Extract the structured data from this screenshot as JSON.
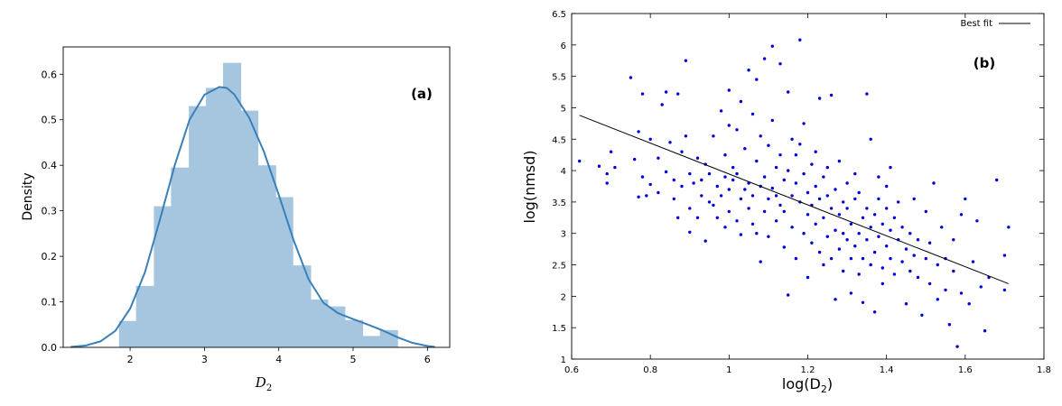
{
  "chart_data": [
    {
      "type": "bar",
      "subtype": "histogram-with-kde",
      "annotation": "(a)",
      "xlabel": "D",
      "xlabel_sub": "2",
      "ylabel": "Density",
      "xlim": [
        1.1,
        6.3
      ],
      "ylim": [
        0,
        0.66
      ],
      "xticks": [
        "2",
        "3",
        "4",
        "5",
        "6"
      ],
      "yticks": [
        "0.0",
        "0.1",
        "0.2",
        "0.3",
        "0.4",
        "0.5",
        "0.6"
      ],
      "bin_edges": [
        1.85,
        2.08,
        2.32,
        2.55,
        2.79,
        3.02,
        3.25,
        3.49,
        3.72,
        3.96,
        4.19,
        4.43,
        4.66,
        4.89,
        5.13,
        5.36,
        5.6
      ],
      "bin_heights": [
        0.058,
        0.135,
        0.31,
        0.395,
        0.53,
        0.57,
        0.625,
        0.52,
        0.4,
        0.33,
        0.18,
        0.105,
        0.09,
        0.06,
        0.025,
        0.038
      ],
      "kde_x": [
        1.2,
        1.4,
        1.6,
        1.8,
        2.0,
        2.2,
        2.4,
        2.6,
        2.8,
        3.0,
        3.2,
        3.3,
        3.4,
        3.6,
        3.8,
        4.0,
        4.2,
        4.4,
        4.6,
        4.8,
        5.0,
        5.2,
        5.4,
        5.6,
        5.8,
        6.0,
        6.1
      ],
      "kde_y": [
        0.001,
        0.004,
        0.013,
        0.036,
        0.085,
        0.165,
        0.28,
        0.4,
        0.5,
        0.555,
        0.572,
        0.57,
        0.556,
        0.505,
        0.43,
        0.335,
        0.235,
        0.15,
        0.098,
        0.075,
        0.062,
        0.05,
        0.037,
        0.022,
        0.01,
        0.003,
        0.001
      ],
      "bar_color": "#a6c6df",
      "line_color": "#3b80b8"
    },
    {
      "type": "scatter",
      "annotation": "(b)",
      "xlabel": "log(D",
      "xlabel_sub": "2",
      "xlabel_end": ")",
      "ylabel": "log(nmsd)",
      "xlim": [
        0.6,
        1.8
      ],
      "ylim": [
        1,
        6.5
      ],
      "xticks": [
        "0.6",
        "0.8",
        "1",
        "1.2",
        "1.4",
        "1.6",
        "1.8"
      ],
      "yticks": [
        "1",
        "1.5",
        "2",
        "2.5",
        "3",
        "3.5",
        "4",
        "4.5",
        "5",
        "5.5",
        "6",
        "6.5"
      ],
      "legend": {
        "label": "Best fit",
        "position": "top-right"
      },
      "fit_line": {
        "x": [
          0.62,
          1.71
        ],
        "y": [
          4.88,
          2.2
        ]
      },
      "point_color": "#0000dd",
      "fit_color": "#000000",
      "points": [
        [
          0.62,
          4.15
        ],
        [
          0.67,
          4.07
        ],
        [
          0.69,
          3.95
        ],
        [
          0.7,
          4.3
        ],
        [
          0.71,
          4.05
        ],
        [
          0.69,
          3.8
        ],
        [
          0.75,
          5.48
        ],
        [
          0.76,
          4.18
        ],
        [
          0.77,
          3.58
        ],
        [
          0.77,
          4.62
        ],
        [
          0.78,
          3.9
        ],
        [
          0.78,
          5.22
        ],
        [
          0.79,
          3.6
        ],
        [
          0.8,
          3.78
        ],
        [
          0.8,
          4.5
        ],
        [
          0.82,
          3.65
        ],
        [
          0.82,
          4.2
        ],
        [
          0.83,
          5.05
        ],
        [
          0.84,
          5.25
        ],
        [
          0.84,
          3.98
        ],
        [
          0.85,
          4.45
        ],
        [
          0.86,
          3.85
        ],
        [
          0.86,
          3.55
        ],
        [
          0.87,
          5.22
        ],
        [
          0.87,
          3.25
        ],
        [
          0.88,
          4.3
        ],
        [
          0.88,
          3.75
        ],
        [
          0.89,
          5.75
        ],
        [
          0.89,
          4.55
        ],
        [
          0.9,
          3.95
        ],
        [
          0.9,
          3.4
        ],
        [
          0.9,
          3.02
        ],
        [
          0.91,
          3.8
        ],
        [
          0.92,
          4.2
        ],
        [
          0.92,
          3.25
        ],
        [
          0.93,
          3.6
        ],
        [
          0.93,
          3.85
        ],
        [
          0.94,
          4.1
        ],
        [
          0.94,
          2.88
        ],
        [
          0.95,
          3.5
        ],
        [
          0.95,
          3.95
        ],
        [
          0.96,
          4.55
        ],
        [
          0.96,
          3.45
        ],
        [
          0.97,
          3.75
        ],
        [
          0.97,
          3.25
        ],
        [
          0.98,
          4.95
        ],
        [
          0.98,
          3.6
        ],
        [
          0.99,
          3.9
        ],
        [
          0.99,
          4.25
        ],
        [
          0.99,
          3.1
        ],
        [
          1.0,
          5.28
        ],
        [
          1.0,
          3.7
        ],
        [
          1.0,
          4.72
        ],
        [
          1.0,
          3.35
        ],
        [
          1.01,
          3.85
        ],
        [
          1.01,
          4.05
        ],
        [
          1.02,
          4.65
        ],
        [
          1.02,
          3.2
        ],
        [
          1.02,
          3.95
        ],
        [
          1.03,
          5.1
        ],
        [
          1.03,
          3.55
        ],
        [
          1.03,
          2.98
        ],
        [
          1.04,
          3.7
        ],
        [
          1.04,
          4.35
        ],
        [
          1.05,
          5.6
        ],
        [
          1.05,
          3.8
        ],
        [
          1.05,
          3.4
        ],
        [
          1.06,
          4.9
        ],
        [
          1.06,
          3.15
        ],
        [
          1.06,
          3.6
        ],
        [
          1.07,
          5.45
        ],
        [
          1.07,
          4.15
        ],
        [
          1.07,
          3.0
        ],
        [
          1.08,
          3.75
        ],
        [
          1.08,
          2.55
        ],
        [
          1.08,
          4.55
        ],
        [
          1.09,
          3.35
        ],
        [
          1.09,
          3.9
        ],
        [
          1.09,
          5.78
        ],
        [
          1.1,
          4.4
        ],
        [
          1.1,
          3.55
        ],
        [
          1.1,
          2.95
        ],
        [
          1.11,
          5.98
        ],
        [
          1.11,
          3.72
        ],
        [
          1.11,
          4.8
        ],
        [
          1.12,
          3.2
        ],
        [
          1.12,
          4.05
        ],
        [
          1.12,
          3.6
        ],
        [
          1.13,
          5.7
        ],
        [
          1.13,
          3.45
        ],
        [
          1.13,
          4.25
        ],
        [
          1.14,
          2.78
        ],
        [
          1.14,
          3.85
        ],
        [
          1.14,
          3.35
        ],
        [
          1.15,
          5.25
        ],
        [
          1.15,
          4.0
        ],
        [
          1.15,
          2.02
        ],
        [
          1.16,
          3.6
        ],
        [
          1.16,
          4.5
        ],
        [
          1.16,
          3.1
        ],
        [
          1.17,
          3.8
        ],
        [
          1.17,
          4.25
        ],
        [
          1.17,
          2.6
        ],
        [
          1.18,
          6.08
        ],
        [
          1.18,
          3.5
        ],
        [
          1.18,
          4.42
        ],
        [
          1.19,
          3.0
        ],
        [
          1.19,
          3.95
        ],
        [
          1.19,
          4.75
        ],
        [
          1.2,
          3.65
        ],
        [
          1.2,
          3.3
        ],
        [
          1.2,
          2.3
        ],
        [
          1.21,
          4.1
        ],
        [
          1.21,
          3.45
        ],
        [
          1.21,
          2.85
        ],
        [
          1.22,
          3.75
        ],
        [
          1.22,
          3.15
        ],
        [
          1.22,
          4.3
        ],
        [
          1.23,
          5.15
        ],
        [
          1.23,
          3.55
        ],
        [
          1.23,
          2.7
        ],
        [
          1.24,
          3.9
        ],
        [
          1.24,
          3.25
        ],
        [
          1.24,
          2.5
        ],
        [
          1.25,
          3.6
        ],
        [
          1.25,
          4.05
        ],
        [
          1.25,
          2.95
        ],
        [
          1.26,
          5.2
        ],
        [
          1.26,
          3.4
        ],
        [
          1.26,
          2.6
        ],
        [
          1.27,
          3.7
        ],
        [
          1.27,
          3.05
        ],
        [
          1.27,
          1.95
        ],
        [
          1.28,
          3.3
        ],
        [
          1.28,
          2.75
        ],
        [
          1.28,
          4.15
        ],
        [
          1.29,
          3.5
        ],
        [
          1.29,
          2.4
        ],
        [
          1.29,
          3.0
        ],
        [
          1.3,
          3.8
        ],
        [
          1.3,
          2.9
        ],
        [
          1.3,
          3.4
        ],
        [
          1.31,
          3.15
        ],
        [
          1.31,
          2.6
        ],
        [
          1.31,
          2.05
        ],
        [
          1.32,
          3.55
        ],
        [
          1.32,
          2.8
        ],
        [
          1.32,
          3.95
        ],
        [
          1.33,
          3.0
        ],
        [
          1.33,
          2.35
        ],
        [
          1.33,
          3.65
        ],
        [
          1.34,
          3.25
        ],
        [
          1.34,
          2.6
        ],
        [
          1.34,
          1.9
        ],
        [
          1.35,
          3.4
        ],
        [
          1.35,
          2.9
        ],
        [
          1.35,
          5.22
        ],
        [
          1.36,
          3.1
        ],
        [
          1.36,
          2.5
        ],
        [
          1.36,
          4.5
        ],
        [
          1.37,
          3.3
        ],
        [
          1.37,
          2.7
        ],
        [
          1.37,
          1.75
        ],
        [
          1.38,
          3.55
        ],
        [
          1.38,
          2.95
        ],
        [
          1.38,
          3.9
        ],
        [
          1.39,
          2.45
        ],
        [
          1.39,
          3.15
        ],
        [
          1.39,
          2.2
        ],
        [
          1.4,
          3.4
        ],
        [
          1.4,
          2.8
        ],
        [
          1.4,
          3.75
        ],
        [
          1.41,
          2.6
        ],
        [
          1.41,
          3.05
        ],
        [
          1.41,
          4.05
        ],
        [
          1.42,
          3.25
        ],
        [
          1.42,
          2.35
        ],
        [
          1.43,
          2.9
        ],
        [
          1.43,
          3.5
        ],
        [
          1.44,
          2.55
        ],
        [
          1.44,
          3.1
        ],
        [
          1.45,
          2.75
        ],
        [
          1.45,
          1.88
        ],
        [
          1.46,
          3.0
        ],
        [
          1.46,
          2.4
        ],
        [
          1.47,
          2.65
        ],
        [
          1.47,
          3.55
        ],
        [
          1.48,
          2.3
        ],
        [
          1.48,
          2.9
        ],
        [
          1.49,
          1.7
        ],
        [
          1.5,
          2.6
        ],
        [
          1.5,
          3.35
        ],
        [
          1.51,
          2.2
        ],
        [
          1.51,
          2.85
        ],
        [
          1.52,
          3.8
        ],
        [
          1.53,
          1.95
        ],
        [
          1.53,
          2.5
        ],
        [
          1.54,
          3.1
        ],
        [
          1.55,
          2.1
        ],
        [
          1.55,
          2.6
        ],
        [
          1.56,
          1.55
        ],
        [
          1.57,
          2.9
        ],
        [
          1.57,
          2.4
        ],
        [
          1.58,
          1.2
        ],
        [
          1.59,
          3.3
        ],
        [
          1.59,
          2.05
        ],
        [
          1.6,
          3.55
        ],
        [
          1.61,
          1.88
        ],
        [
          1.62,
          2.55
        ],
        [
          1.63,
          3.2
        ],
        [
          1.64,
          2.15
        ],
        [
          1.65,
          1.45
        ],
        [
          1.66,
          2.3
        ],
        [
          1.68,
          3.85
        ],
        [
          1.7,
          2.1
        ],
        [
          1.7,
          2.65
        ],
        [
          1.71,
          3.1
        ]
      ]
    }
  ]
}
